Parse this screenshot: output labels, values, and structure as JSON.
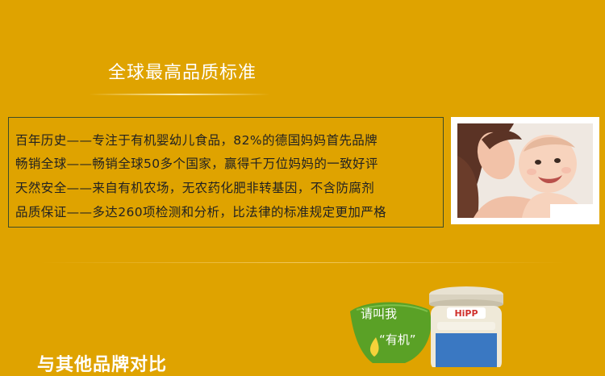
{
  "section": {
    "title": "全球最高品质标准"
  },
  "features": [
    "百年历史——专注于有机婴幼儿食品，82%的德国妈妈首先品牌",
    "畅销全球——畅销全球50多个国家，赢得千万位妈妈的一致好评",
    "天然安全——来自有机农场，无农药化肥非转基因，不含防腐剂",
    "品质保证——多达260项检测和分析，比法律的标准规定更加严格"
  ],
  "badge": {
    "line1": "请叫我",
    "line2": "“有机”"
  },
  "jar": {
    "brand": "HiPP"
  },
  "next_section": {
    "title": "与其他品牌对比"
  },
  "colors": {
    "background": "#dfa300",
    "badge_green": "#5aa126",
    "text": "#222222"
  }
}
